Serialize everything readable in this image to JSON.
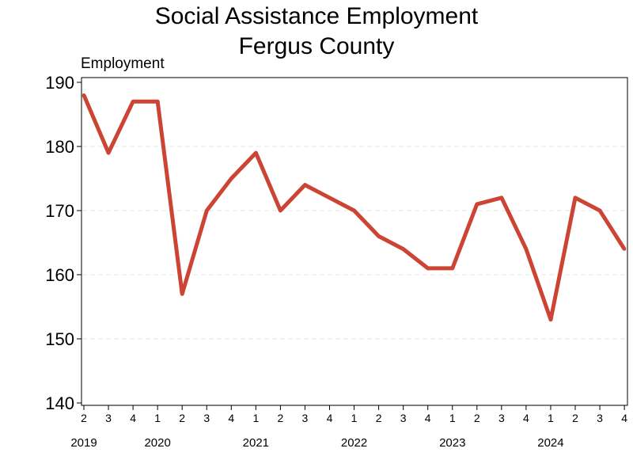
{
  "chart_data": {
    "type": "line",
    "title": "Social Assistance Employment",
    "subtitle": "Fergus County",
    "xlabel": "",
    "ylabel": "Employment",
    "ylim": [
      140,
      190
    ],
    "yticks": [
      140,
      150,
      160,
      170,
      180,
      190
    ],
    "grid": true,
    "legend": "none",
    "colors": {
      "line": "#cc4433",
      "grid": "#e6e6e6",
      "axis": "#000000"
    },
    "x": [
      "2019 Q2",
      "2019 Q3",
      "2019 Q4",
      "2020 Q1",
      "2020 Q2",
      "2020 Q3",
      "2020 Q4",
      "2021 Q1",
      "2021 Q2",
      "2021 Q3",
      "2021 Q4",
      "2022 Q1",
      "2022 Q2",
      "2022 Q3",
      "2022 Q4",
      "2023 Q1",
      "2023 Q2",
      "2023 Q3",
      "2023 Q4",
      "2024 Q1",
      "2024 Q2",
      "2024 Q3",
      "2024 Q4"
    ],
    "quarter_labels": [
      "2",
      "3",
      "4",
      "1",
      "2",
      "3",
      "4",
      "1",
      "2",
      "3",
      "4",
      "1",
      "2",
      "3",
      "4",
      "1",
      "2",
      "3",
      "4",
      "1",
      "2",
      "3",
      "4"
    ],
    "year_labels": [
      "2019",
      "2020",
      "2021",
      "2022",
      "2023",
      "2024"
    ],
    "series": [
      {
        "values": [
          188,
          179,
          187,
          187,
          157,
          170,
          175,
          179,
          170,
          174,
          172,
          170,
          166,
          164,
          161,
          161,
          171,
          172,
          164,
          153,
          172,
          170,
          164
        ]
      }
    ]
  }
}
